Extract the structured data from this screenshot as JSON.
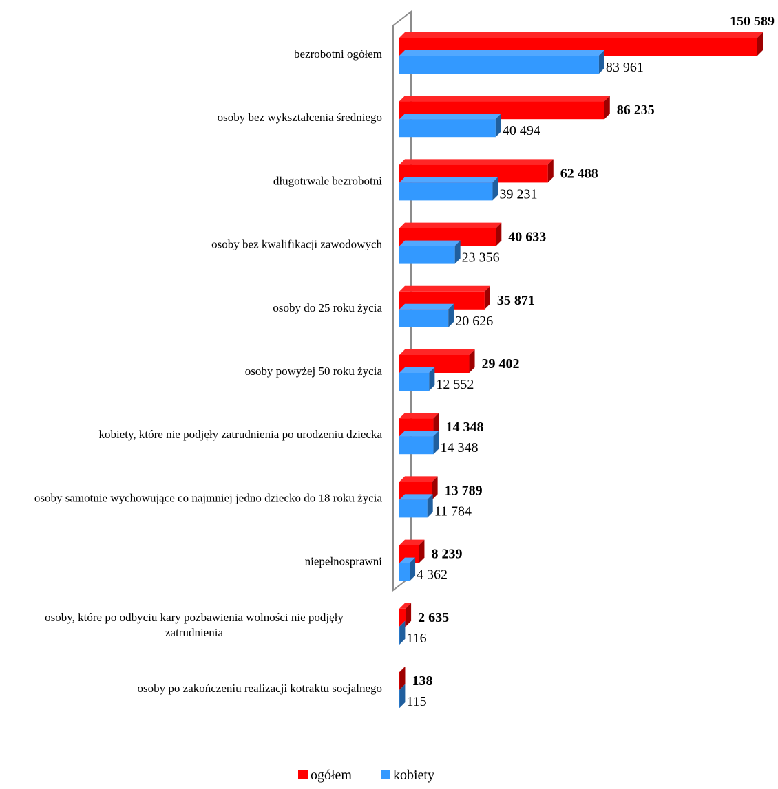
{
  "chart_data": {
    "type": "bar",
    "orientation": "horizontal",
    "categories": [
      "bezrobotni ogółem",
      "osoby bez wykształcenia średniego",
      "długotrwale bezrobotni",
      "osoby bez kwalifikacji zawodowych",
      "osoby do 25 roku życia",
      "osoby powyżej 50 roku życia",
      "kobiety, które nie podjęły zatrudnienia po urodzeniu dziecka",
      "osoby samotnie wychowujące co najmniej jedno dziecko do 18 roku życia",
      "niepełnosprawni",
      "osoby, które po odbyciu kary pozbawienia wolności nie podjęły zatrudnienia",
      "osoby po zakończeniu realizacji kotraktu socjalnego"
    ],
    "series": [
      {
        "name": "ogółem",
        "color": "#ff0000",
        "values": [
          150589,
          86235,
          62488,
          40633,
          35871,
          29402,
          14348,
          13789,
          8239,
          2635,
          138
        ],
        "labels": [
          "150 589",
          "86 235",
          "62 488",
          "40 633",
          "35 871",
          "29 402",
          "14 348",
          "13 789",
          "8 239",
          "2 635",
          "138"
        ]
      },
      {
        "name": "kobiety",
        "color": "#3399ff",
        "values": [
          83961,
          40494,
          39231,
          23356,
          20626,
          12552,
          14348,
          11784,
          4362,
          116,
          115
        ],
        "labels": [
          "83 961",
          "40 494",
          "39 231",
          "23 356",
          "20 626",
          "12 552",
          "14 348",
          "11 784",
          "4 362",
          "116",
          "115"
        ]
      }
    ],
    "xlim": [
      0,
      150589
    ],
    "grid": false,
    "legend_position": "bottom",
    "style": "3d"
  }
}
